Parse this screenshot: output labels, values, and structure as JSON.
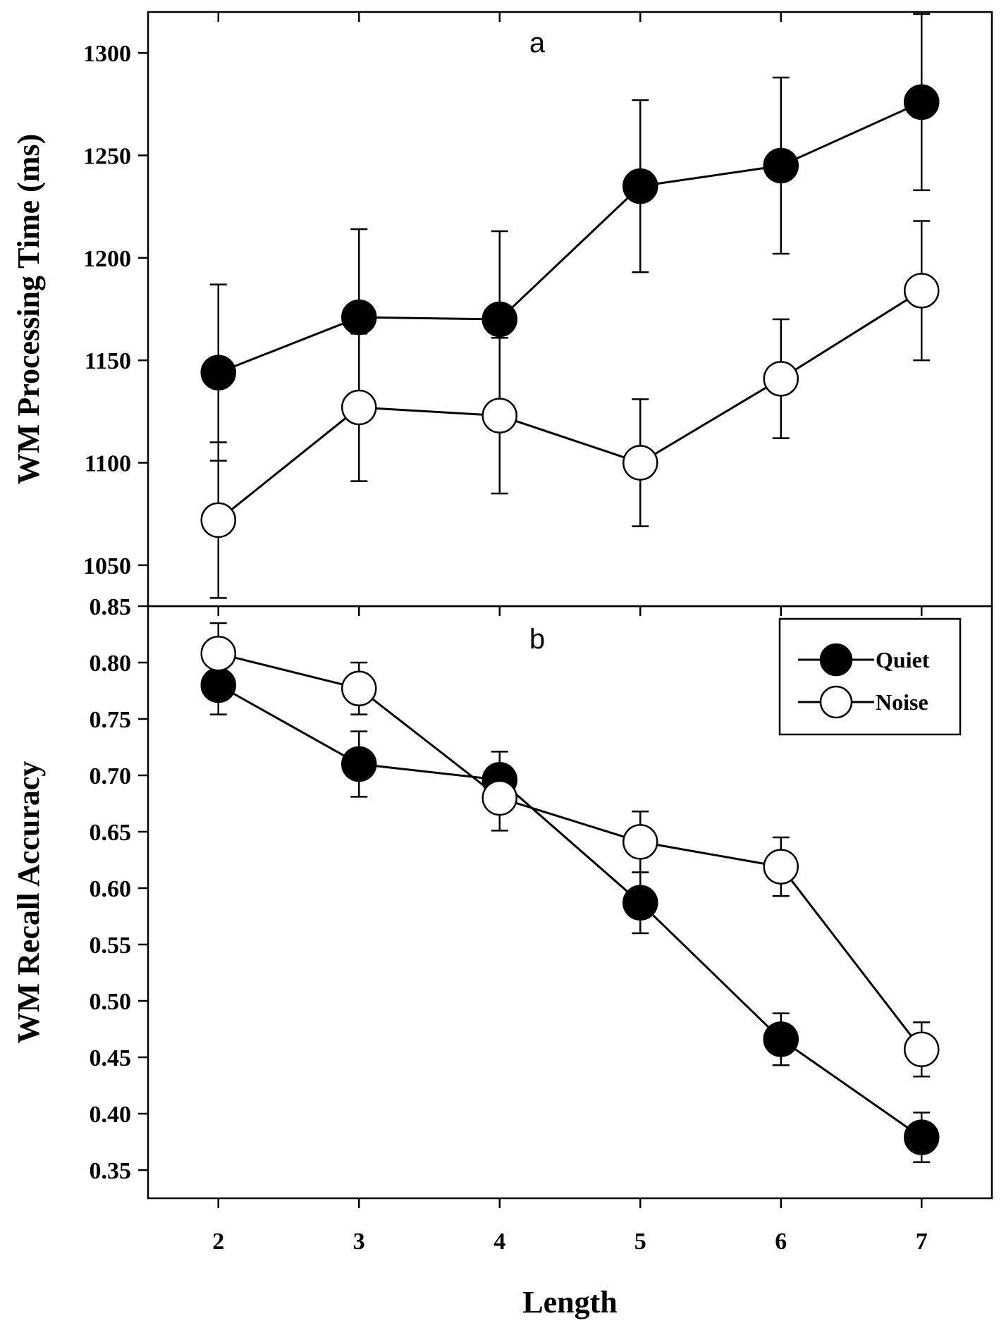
{
  "chart_data": [
    {
      "type": "line",
      "panel_label": "a",
      "xlabel": "",
      "ylabel": "WM Processing Time (ms)",
      "x": [
        2,
        3,
        4,
        5,
        6,
        7
      ],
      "xlim": [
        1.5,
        7.5
      ],
      "ylim": [
        1030,
        1320
      ],
      "yticks": [
        1050,
        1100,
        1150,
        1200,
        1250,
        1300
      ],
      "ytick_labels": [
        "1050",
        "1100",
        "1150",
        "1200",
        "1250",
        "1300"
      ],
      "series": [
        {
          "name": "Quiet",
          "marker": "filled-circle",
          "values": [
            1144,
            1171,
            1170,
            1235,
            1245,
            1276
          ],
          "error": [
            43,
            43,
            43,
            42,
            43,
            43
          ]
        },
        {
          "name": "Noise",
          "marker": "open-circle",
          "values": [
            1072,
            1127,
            1123,
            1100,
            1141,
            1184
          ],
          "error": [
            38,
            36,
            38,
            31,
            29,
            34
          ]
        }
      ]
    },
    {
      "type": "line",
      "panel_label": "b",
      "xlabel": "Length",
      "ylabel": "WM Recall Accuracy",
      "x": [
        2,
        3,
        4,
        5,
        6,
        7
      ],
      "xlim": [
        1.5,
        7.5
      ],
      "ylim": [
        0.325,
        0.85
      ],
      "xticks": [
        2,
        3,
        4,
        5,
        6,
        7
      ],
      "xtick_labels": [
        "2",
        "3",
        "4",
        "5",
        "6",
        "7"
      ],
      "yticks": [
        0.35,
        0.4,
        0.45,
        0.5,
        0.55,
        0.6,
        0.65,
        0.7,
        0.75,
        0.8,
        0.85
      ],
      "ytick_labels": [
        "0.35",
        "0.40",
        "0.45",
        "0.50",
        "0.55",
        "0.60",
        "0.65",
        "0.70",
        "0.75",
        "0.80",
        "0.85"
      ],
      "legend_position": "top-right",
      "legend": [
        "Quiet",
        "Noise"
      ],
      "series": [
        {
          "name": "Quiet",
          "marker": "filled-circle",
          "values": [
            0.78,
            0.71,
            0.696,
            0.587,
            0.466,
            0.379
          ],
          "error": [
            0.026,
            0.029,
            0.025,
            0.027,
            0.023,
            0.022
          ]
        },
        {
          "name": "Noise",
          "marker": "open-circle",
          "values": [
            0.808,
            0.777,
            0.68,
            0.641,
            0.619,
            0.457
          ],
          "error": [
            0.027,
            0.023,
            0.029,
            0.027,
            0.026,
            0.024
          ]
        }
      ]
    }
  ]
}
